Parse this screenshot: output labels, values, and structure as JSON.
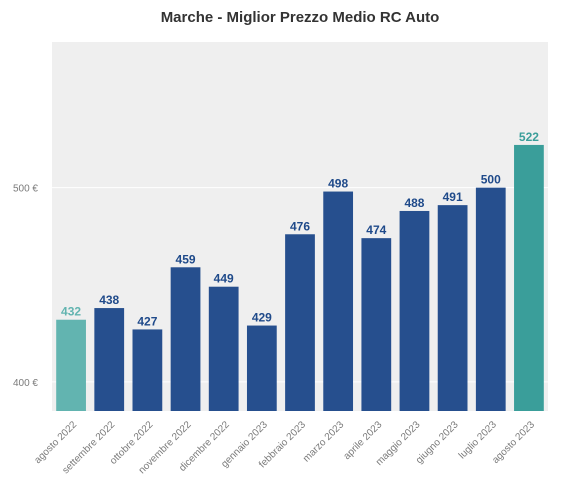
{
  "chart_data": {
    "type": "bar",
    "title": "Marche - Miglior Prezzo Medio RC Auto",
    "xlabel": "",
    "ylabel": "",
    "categories": [
      "agosto 2022",
      "settembre 2022",
      "ottobre 2022",
      "novembre 2022",
      "dicembre 2022",
      "gennaio 2023",
      "febbraio 2023",
      "marzo 2023",
      "aprile 2023",
      "maggio 2023",
      "giugno 2023",
      "luglio 2023",
      "agosto 2023"
    ],
    "values": [
      432,
      438,
      427,
      459,
      449,
      429,
      476,
      498,
      474,
      488,
      491,
      500,
      522
    ],
    "data_labels": [
      "432",
      "438",
      "427",
      "459",
      "449",
      "429",
      "476",
      "498",
      "474",
      "488",
      "491",
      "500",
      "522"
    ],
    "bar_colors": [
      "#62b4b0",
      "#264f8e",
      "#264f8e",
      "#264f8e",
      "#264f8e",
      "#264f8e",
      "#264f8e",
      "#264f8e",
      "#264f8e",
      "#264f8e",
      "#264f8e",
      "#264f8e",
      "#3a9e9a"
    ],
    "label_colors": [
      "#62b4b0",
      "#1f4a8a",
      "#1f4a8a",
      "#1f4a8a",
      "#1f4a8a",
      "#1f4a8a",
      "#1f4a8a",
      "#1f4a8a",
      "#1f4a8a",
      "#1f4a8a",
      "#1f4a8a",
      "#1f4a8a",
      "#3a9e9a"
    ],
    "yticks": [
      400,
      500
    ],
    "ytick_labels": [
      "400 €",
      "500 €"
    ],
    "ylim": [
      385,
      575
    ],
    "grid": true,
    "background": "#efefef",
    "legend": "none"
  }
}
